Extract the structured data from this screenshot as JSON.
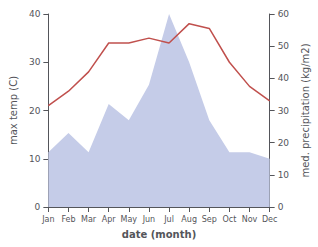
{
  "chart_data": {
    "type": "line",
    "xlabel": "date (month)",
    "ylabel": "max temp (C)",
    "y2label": "med. precipitation (kg/m2)",
    "categories": [
      "Jan",
      "Feb",
      "Mar",
      "Apr",
      "May",
      "Jun",
      "Jul",
      "Aug",
      "Sep",
      "Oct",
      "Nov",
      "Dec"
    ],
    "series": [
      {
        "type": "area",
        "color": "#c5cce8",
        "axis": "y2",
        "values": [
          17,
          23,
          17,
          32,
          27,
          38,
          60,
          45,
          27,
          17,
          17,
          15
        ]
      },
      {
        "type": "line",
        "color": "#c0504d",
        "values": [
          21,
          24,
          28,
          34,
          34,
          35,
          34,
          38,
          37,
          30,
          25,
          22
        ]
      }
    ],
    "ylim": [
      0,
      40
    ],
    "yticks": [
      0,
      10,
      20,
      30,
      40
    ],
    "y2lim": [
      0,
      60
    ],
    "y2ticks": [
      0,
      10,
      20,
      30,
      40,
      50,
      60
    ],
    "grid": false
  }
}
